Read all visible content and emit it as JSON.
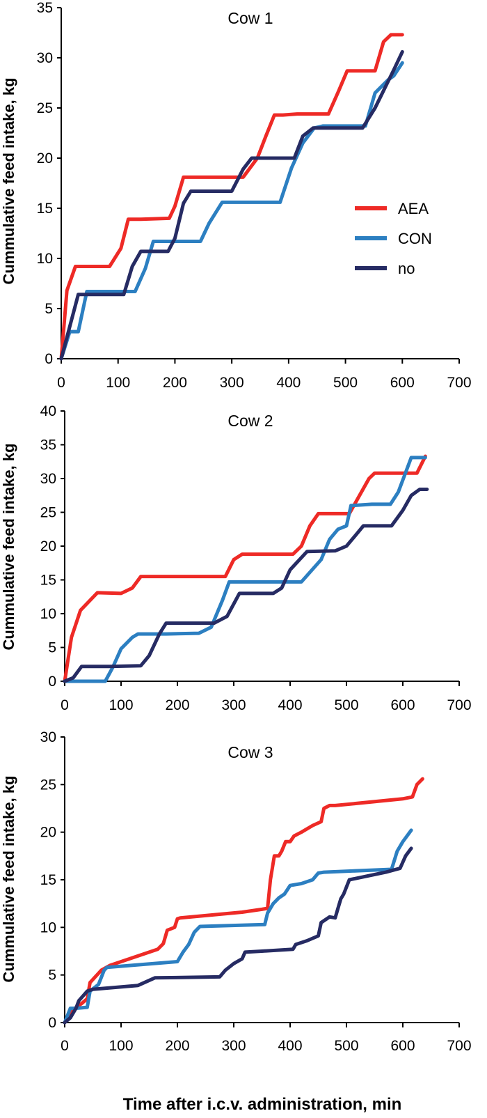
{
  "figure": {
    "xlabel": "Time after i.c.v. administration, min"
  },
  "colors": {
    "AEA": "#ee2a26",
    "CON": "#2c7fc1",
    "no": "#262b63"
  },
  "legend": {
    "placement": "center-right of Cow 1 panel",
    "items": [
      "AEA",
      "CON",
      "no"
    ]
  },
  "chart_data": [
    {
      "type": "line",
      "title": "Cow 1",
      "xlabel": "",
      "ylabel": "Cummulative feed intake, kg",
      "xlim": [
        0,
        700
      ],
      "ylim": [
        0,
        35
      ],
      "xticks": [
        0,
        100,
        200,
        300,
        400,
        500,
        600,
        700
      ],
      "yticks": [
        0,
        5,
        10,
        15,
        20,
        25,
        30,
        35
      ],
      "grid": false,
      "series": [
        {
          "name": "AEA",
          "points": [
            [
              0,
              0
            ],
            [
              10,
              6.8
            ],
            [
              25,
              9.2
            ],
            [
              85,
              9.2
            ],
            [
              105,
              11
            ],
            [
              118,
              13.9
            ],
            [
              140,
              13.9
            ],
            [
              190,
              14
            ],
            [
              200,
              15.2
            ],
            [
              215,
              18.1
            ],
            [
              320,
              18.1
            ],
            [
              345,
              20
            ],
            [
              360,
              22.2
            ],
            [
              375,
              24.3
            ],
            [
              390,
              24.3
            ],
            [
              415,
              24.4
            ],
            [
              470,
              24.4
            ],
            [
              488,
              26.7
            ],
            [
              503,
              28.7
            ],
            [
              552,
              28.7
            ],
            [
              567,
              31.6
            ],
            [
              580,
              32.3
            ],
            [
              600,
              32.3
            ]
          ]
        },
        {
          "name": "CON",
          "points": [
            [
              0,
              0
            ],
            [
              15,
              2.7
            ],
            [
              30,
              2.7
            ],
            [
              45,
              6.7
            ],
            [
              85,
              6.7
            ],
            [
              130,
              6.7
            ],
            [
              148,
              9
            ],
            [
              162,
              11.7
            ],
            [
              245,
              11.7
            ],
            [
              260,
              13.5
            ],
            [
              283,
              15.6
            ],
            [
              385,
              15.6
            ],
            [
              405,
              19
            ],
            [
              425,
              21.5
            ],
            [
              445,
              23
            ],
            [
              460,
              23.2
            ],
            [
              535,
              23.2
            ],
            [
              552,
              26.5
            ],
            [
              575,
              27.8
            ],
            [
              585,
              28.2
            ],
            [
              600,
              29.5
            ]
          ]
        },
        {
          "name": "no",
          "points": [
            [
              0,
              0
            ],
            [
              30,
              6.4
            ],
            [
              110,
              6.4
            ],
            [
              125,
              9.2
            ],
            [
              140,
              10.7
            ],
            [
              188,
              10.7
            ],
            [
              200,
              12
            ],
            [
              215,
              15.5
            ],
            [
              228,
              16.7
            ],
            [
              300,
              16.7
            ],
            [
              320,
              18.9
            ],
            [
              335,
              20
            ],
            [
              410,
              20
            ],
            [
              425,
              22.2
            ],
            [
              443,
              23
            ],
            [
              500,
              23
            ],
            [
              530,
              23
            ],
            [
              552,
              25
            ],
            [
              585,
              28.8
            ],
            [
              600,
              30.6
            ]
          ]
        }
      ]
    },
    {
      "type": "line",
      "title": "Cow 2",
      "xlabel": "",
      "ylabel": "Cummulative feed intake, kg",
      "xlim": [
        0,
        700
      ],
      "ylim": [
        0,
        40
      ],
      "xticks": [
        0,
        100,
        200,
        300,
        400,
        500,
        600,
        700
      ],
      "yticks": [
        0,
        5,
        10,
        15,
        20,
        25,
        30,
        35,
        40
      ],
      "grid": false,
      "series": [
        {
          "name": "AEA",
          "points": [
            [
              0,
              0
            ],
            [
              12,
              6.5
            ],
            [
              28,
              10.5
            ],
            [
              58,
              13.1
            ],
            [
              100,
              13
            ],
            [
              120,
              13.8
            ],
            [
              135,
              15.5
            ],
            [
              285,
              15.5
            ],
            [
              300,
              18
            ],
            [
              315,
              18.8
            ],
            [
              405,
              18.8
            ],
            [
              420,
              20
            ],
            [
              435,
              23
            ],
            [
              450,
              24.8
            ],
            [
              490,
              24.8
            ],
            [
              505,
              24.8
            ],
            [
              540,
              30
            ],
            [
              550,
              30.8
            ],
            [
              625,
              30.8
            ],
            [
              640,
              33.3
            ]
          ]
        },
        {
          "name": "CON",
          "points": [
            [
              0,
              0
            ],
            [
              30,
              0
            ],
            [
              72,
              0
            ],
            [
              85,
              2
            ],
            [
              100,
              4.8
            ],
            [
              120,
              6.5
            ],
            [
              130,
              7
            ],
            [
              180,
              7
            ],
            [
              238,
              7.1
            ],
            [
              260,
              8
            ],
            [
              280,
              12
            ],
            [
              292,
              14.7
            ],
            [
              390,
              14.7
            ],
            [
              420,
              14.7
            ],
            [
              455,
              18
            ],
            [
              470,
              21
            ],
            [
              485,
              22.5
            ],
            [
              500,
              23
            ],
            [
              508,
              26
            ],
            [
              545,
              26.2
            ],
            [
              578,
              26.2
            ],
            [
              592,
              28
            ],
            [
              615,
              33.1
            ],
            [
              640,
              33.1
            ]
          ]
        },
        {
          "name": "no",
          "points": [
            [
              0,
              0
            ],
            [
              15,
              0.5
            ],
            [
              30,
              2.2
            ],
            [
              80,
              2.2
            ],
            [
              135,
              2.3
            ],
            [
              150,
              3.8
            ],
            [
              168,
              7
            ],
            [
              180,
              8.6
            ],
            [
              265,
              8.6
            ],
            [
              288,
              9.6
            ],
            [
              310,
              13
            ],
            [
              370,
              13
            ],
            [
              385,
              13.8
            ],
            [
              400,
              16.5
            ],
            [
              430,
              19.2
            ],
            [
              480,
              19.3
            ],
            [
              500,
              20
            ],
            [
              515,
              21.5
            ],
            [
              530,
              23
            ],
            [
              580,
              23
            ],
            [
              600,
              25.3
            ],
            [
              615,
              27.5
            ],
            [
              630,
              28.4
            ],
            [
              643,
              28.4
            ]
          ]
        }
      ]
    },
    {
      "type": "line",
      "title": "Cow 3",
      "xlabel": "Time after i.c.v. administration, min",
      "ylabel": "Cummulative feed intake, kg",
      "xlim": [
        0,
        700
      ],
      "ylim": [
        0,
        30
      ],
      "xticks": [
        0,
        100,
        200,
        300,
        400,
        500,
        600,
        700
      ],
      "yticks": [
        0,
        5,
        10,
        15,
        20,
        25,
        30
      ],
      "grid": false,
      "series": [
        {
          "name": "AEA",
          "points": [
            [
              0,
              0
            ],
            [
              18,
              1.5
            ],
            [
              30,
              2
            ],
            [
              40,
              2.5
            ],
            [
              45,
              4.2
            ],
            [
              65,
              5.5
            ],
            [
              80,
              6
            ],
            [
              165,
              7.7
            ],
            [
              175,
              8.3
            ],
            [
              182,
              9.7
            ],
            [
              195,
              10
            ],
            [
              200,
              10.9
            ],
            [
              205,
              11
            ],
            [
              315,
              11.6
            ],
            [
              350,
              11.9
            ],
            [
              360,
              12
            ],
            [
              365,
              15
            ],
            [
              372,
              17.5
            ],
            [
              380,
              17.5
            ],
            [
              385,
              18
            ],
            [
              392,
              19
            ],
            [
              400,
              19
            ],
            [
              407,
              19.6
            ],
            [
              420,
              20
            ],
            [
              440,
              20.7
            ],
            [
              455,
              21.1
            ],
            [
              460,
              22.5
            ],
            [
              470,
              22.8
            ],
            [
              480,
              22.8
            ],
            [
              600,
              23.5
            ],
            [
              617,
              23.7
            ],
            [
              625,
              25
            ],
            [
              635,
              25.6
            ]
          ]
        },
        {
          "name": "CON",
          "points": [
            [
              0,
              0
            ],
            [
              10,
              1.5
            ],
            [
              20,
              1.5
            ],
            [
              40,
              1.6
            ],
            [
              45,
              3.3
            ],
            [
              60,
              4
            ],
            [
              70,
              5.5
            ],
            [
              75,
              5.8
            ],
            [
              200,
              6.4
            ],
            [
              210,
              7.4
            ],
            [
              220,
              8.2
            ],
            [
              230,
              9.5
            ],
            [
              240,
              10.1
            ],
            [
              355,
              10.3
            ],
            [
              360,
              11.5
            ],
            [
              370,
              12.5
            ],
            [
              380,
              13.1
            ],
            [
              390,
              13.5
            ],
            [
              400,
              14.4
            ],
            [
              420,
              14.6
            ],
            [
              440,
              15
            ],
            [
              450,
              15.7
            ],
            [
              460,
              15.8
            ],
            [
              580,
              16.1
            ],
            [
              590,
              18
            ],
            [
              600,
              19
            ],
            [
              615,
              20.2
            ]
          ]
        },
        {
          "name": "no",
          "points": [
            [
              0,
              0
            ],
            [
              10,
              0.5
            ],
            [
              20,
              1.5
            ],
            [
              25,
              2.3
            ],
            [
              40,
              3.3
            ],
            [
              50,
              3.5
            ],
            [
              130,
              3.9
            ],
            [
              160,
              4.7
            ],
            [
              275,
              4.8
            ],
            [
              285,
              5.5
            ],
            [
              300,
              6.2
            ],
            [
              315,
              6.7
            ],
            [
              320,
              7.4
            ],
            [
              350,
              7.5
            ],
            [
              405,
              7.7
            ],
            [
              410,
              8.2
            ],
            [
              430,
              8.6
            ],
            [
              450,
              9.1
            ],
            [
              455,
              10.5
            ],
            [
              470,
              11.1
            ],
            [
              480,
              11
            ],
            [
              485,
              12
            ],
            [
              490,
              13
            ],
            [
              495,
              13.5
            ],
            [
              505,
              15
            ],
            [
              570,
              15.8
            ],
            [
              595,
              16.2
            ],
            [
              605,
              17.5
            ],
            [
              615,
              18.3
            ]
          ]
        }
      ]
    }
  ]
}
